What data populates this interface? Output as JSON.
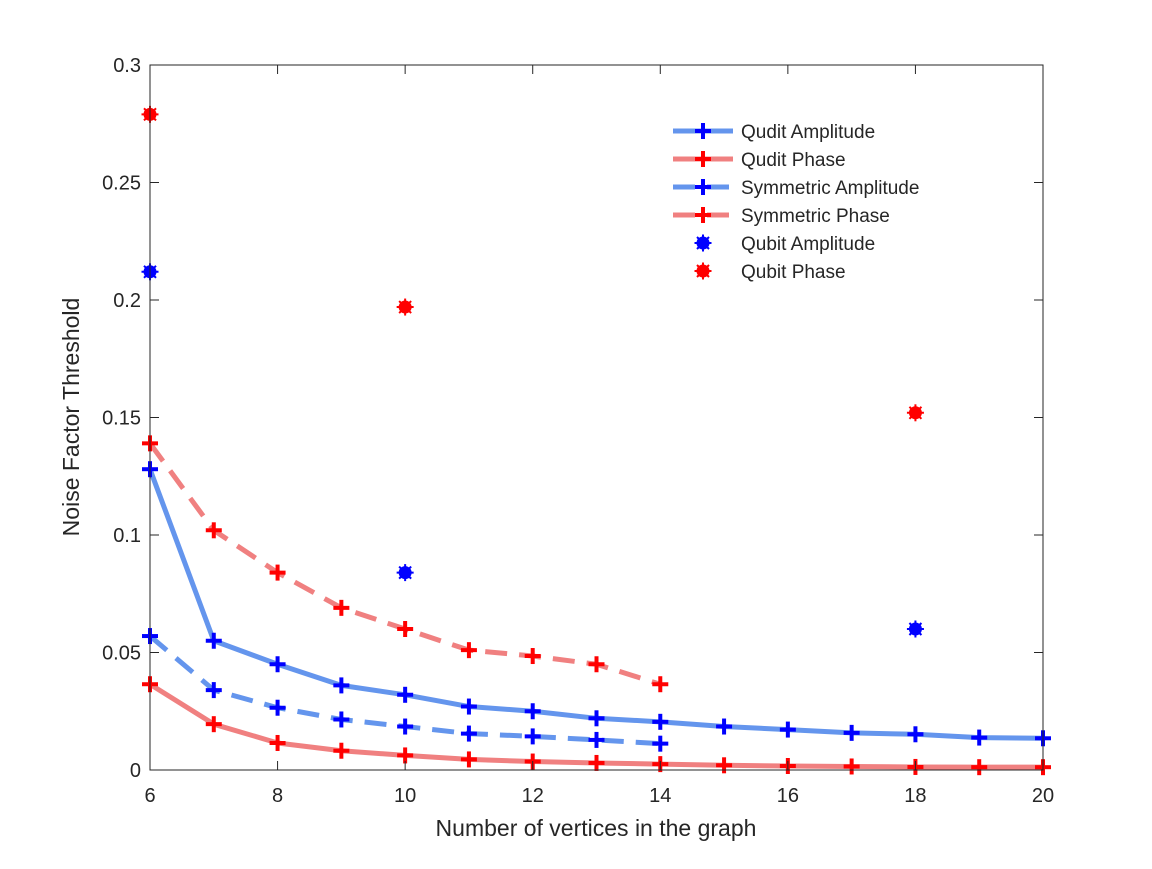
{
  "chart_data": {
    "type": "line",
    "title": "",
    "xlabel": "Number of vertices in the graph",
    "ylabel": "Noise Factor Threshold",
    "xlim": [
      6,
      20
    ],
    "ylim": [
      0,
      0.3
    ],
    "xticks": [
      6,
      8,
      10,
      12,
      14,
      16,
      18,
      20
    ],
    "yticks": [
      0,
      0.05,
      0.1,
      0.15,
      0.2,
      0.25,
      0.3
    ],
    "ytick_labels": [
      "0",
      "0.05",
      "0.1",
      "0.15",
      "0.2",
      "0.25",
      "0.3"
    ],
    "grid": false,
    "legend_position": "top-right",
    "series": [
      {
        "name": "Qudit Amplitude",
        "style": "solid",
        "marker": "plus",
        "line_color": "#6495ED",
        "marker_color": "#0000FF",
        "x": [
          6,
          7,
          8,
          9,
          10,
          11,
          12,
          13,
          14,
          15,
          16,
          17,
          18,
          19,
          20
        ],
        "values": [
          0.128,
          0.055,
          0.045,
          0.036,
          0.032,
          0.027,
          0.025,
          0.022,
          0.0205,
          0.0185,
          0.0172,
          0.0158,
          0.0152,
          0.0138,
          0.0135
        ]
      },
      {
        "name": "Qudit Phase",
        "style": "solid",
        "marker": "plus",
        "line_color": "#F08080",
        "marker_color": "#FF0000",
        "x": [
          6,
          7,
          8,
          9,
          10,
          11,
          12,
          13,
          14,
          15,
          16,
          17,
          18,
          19,
          20
        ],
        "values": [
          0.0365,
          0.0195,
          0.0115,
          0.0082,
          0.0062,
          0.0045,
          0.0036,
          0.003,
          0.0025,
          0.002,
          0.0017,
          0.0015,
          0.0013,
          0.0012,
          0.0012
        ]
      },
      {
        "name": "Symmetric Amplitude",
        "style": "dashed",
        "marker": "plus",
        "line_color": "#6495ED",
        "marker_color": "#0000FF",
        "x": [
          6,
          7,
          8,
          9,
          10,
          11,
          12,
          13,
          14
        ],
        "values": [
          0.057,
          0.034,
          0.0265,
          0.0215,
          0.0185,
          0.0155,
          0.0143,
          0.0128,
          0.0112
        ]
      },
      {
        "name": "Symmetric Phase",
        "style": "dashed",
        "marker": "plus",
        "line_color": "#F08080",
        "marker_color": "#FF0000",
        "x": [
          6,
          7,
          8,
          9,
          10,
          11,
          12,
          13,
          14
        ],
        "values": [
          0.139,
          0.102,
          0.084,
          0.069,
          0.06,
          0.051,
          0.0485,
          0.045,
          0.0365
        ]
      },
      {
        "name": "Qubit Amplitude",
        "style": "none",
        "marker": "asterisk",
        "line_color": "#0000FF",
        "marker_color": "#0000FF",
        "x": [
          6,
          10,
          18
        ],
        "values": [
          0.212,
          0.084,
          0.06
        ]
      },
      {
        "name": "Qubit Phase",
        "style": "none",
        "marker": "asterisk",
        "line_color": "#FF0000",
        "marker_color": "#FF0000",
        "x": [
          6,
          10,
          18
        ],
        "values": [
          0.279,
          0.197,
          0.152
        ]
      }
    ]
  }
}
